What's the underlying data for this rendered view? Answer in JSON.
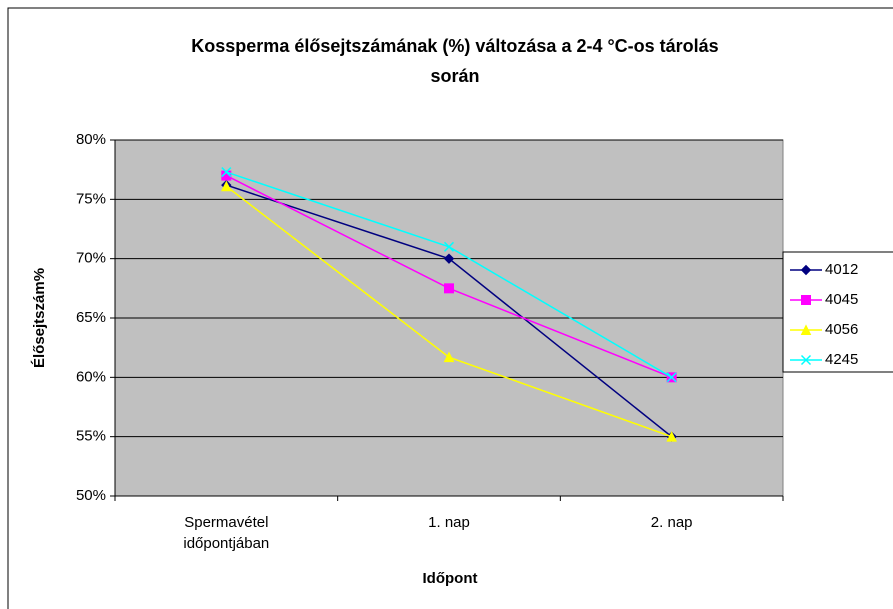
{
  "chart_data": {
    "type": "line",
    "title": [
      "Kossperma élősejtszámának (%) változása a 2-4 °C-os tárolás",
      "során"
    ],
    "xlabel": "Időpont",
    "ylabel": "Élősejtszám%",
    "categories": [
      "Spermavétel időpontjában",
      "1. nap",
      "2. nap"
    ],
    "series": [
      {
        "name": "4012",
        "color": "#000080",
        "marker": "diamond",
        "values": [
          76.2,
          70,
          55
        ]
      },
      {
        "name": "4045",
        "color": "#ff00ff",
        "marker": "square",
        "values": [
          77,
          67.5,
          60
        ]
      },
      {
        "name": "4056",
        "color": "#ffff00",
        "marker": "triangle",
        "values": [
          76.1,
          61.7,
          55
        ]
      },
      {
        "name": "4245",
        "color": "#00ffff",
        "marker": "x",
        "values": [
          77.3,
          71,
          60
        ]
      }
    ],
    "ylim": [
      50,
      80
    ],
    "yticks": [
      {
        "value": 50,
        "label": "50%"
      },
      {
        "value": 55,
        "label": "55%"
      },
      {
        "value": 60,
        "label": "60%"
      },
      {
        "value": 65,
        "label": "65%"
      },
      {
        "value": 70,
        "label": "70%"
      },
      {
        "value": 75,
        "label": "75%"
      },
      {
        "value": 80,
        "label": "80%"
      }
    ],
    "grid": true,
    "legend": "right",
    "plot_background": "#c0c0c0"
  }
}
